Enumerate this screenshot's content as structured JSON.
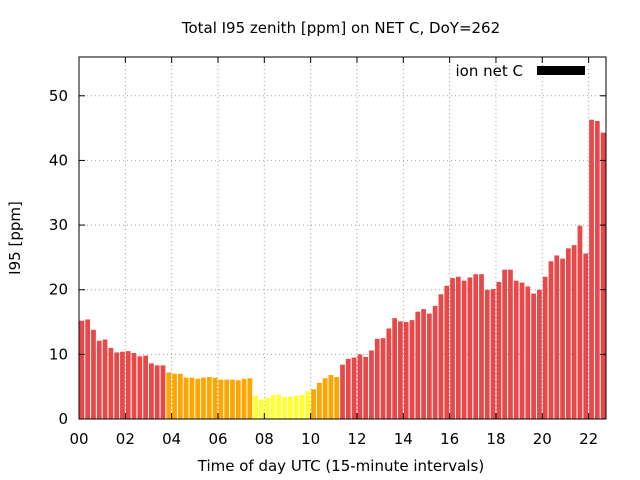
{
  "chart_data": {
    "type": "bar",
    "title": "Total I95 zenith [ppm] on NET C, DoY=262",
    "xlabel": "Time of day UTC (15-minute intervals)",
    "ylabel": "I95 [ppm]",
    "legend_label": "ion net C",
    "legend_position": "top-right",
    "grid": true,
    "xlim": [
      0,
      91
    ],
    "ylim": [
      0,
      56
    ],
    "x_ticks": [
      {
        "pos": 0,
        "label": "00"
      },
      {
        "pos": 8,
        "label": "02"
      },
      {
        "pos": 16,
        "label": "04"
      },
      {
        "pos": 24,
        "label": "06"
      },
      {
        "pos": 32,
        "label": "08"
      },
      {
        "pos": 40,
        "label": "10"
      },
      {
        "pos": 48,
        "label": "12"
      },
      {
        "pos": 56,
        "label": "14"
      },
      {
        "pos": 64,
        "label": "16"
      },
      {
        "pos": 72,
        "label": "18"
      },
      {
        "pos": 80,
        "label": "20"
      },
      {
        "pos": 88,
        "label": "22"
      }
    ],
    "y_ticks": [
      0,
      10,
      20,
      30,
      40,
      50
    ],
    "color_thresholds": [
      {
        "max": 4.5,
        "color": "#ffff33"
      },
      {
        "max": 8.0,
        "color": "#ffa500"
      },
      {
        "max": 1000,
        "color": "#e84848"
      }
    ],
    "values": [
      15.2,
      15.4,
      13.8,
      12.1,
      12.3,
      11.0,
      10.3,
      10.4,
      10.5,
      10.2,
      9.7,
      9.8,
      8.6,
      8.3,
      8.3,
      7.2,
      7.0,
      7.0,
      6.4,
      6.4,
      6.2,
      6.4,
      6.5,
      6.4,
      6.1,
      6.1,
      6.1,
      6.0,
      6.2,
      6.3,
      3.6,
      3.0,
      3.3,
      3.7,
      3.8,
      3.4,
      3.5,
      3.6,
      3.7,
      4.3,
      4.6,
      5.6,
      6.3,
      6.8,
      6.5,
      8.4,
      9.3,
      9.5,
      10.0,
      9.6,
      10.6,
      12.4,
      12.5,
      14.0,
      15.6,
      15.1,
      15.0,
      15.3,
      16.6,
      17.0,
      16.3,
      17.5,
      19.3,
      20.6,
      21.8,
      22.0,
      21.4,
      21.9,
      22.4,
      22.4,
      20.0,
      20.1,
      21.2,
      23.1,
      23.1,
      21.4,
      21.1,
      20.5,
      19.4,
      20.0,
      22.0,
      24.4,
      25.3,
      24.8,
      26.4,
      26.9,
      29.9,
      25.6,
      46.3,
      46.1,
      44.3
    ]
  }
}
